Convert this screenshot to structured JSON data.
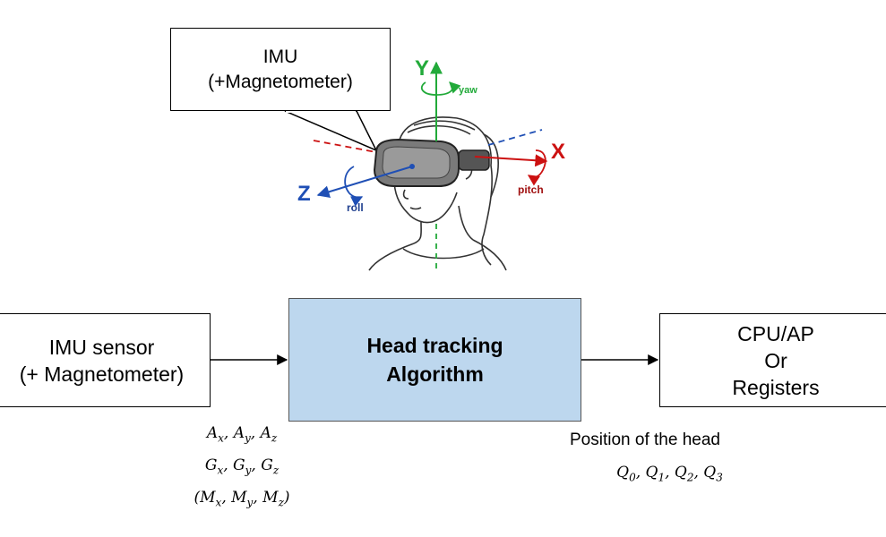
{
  "callout": {
    "line1": "IMU",
    "line2": "(+Magnetometer)"
  },
  "axes": {
    "y": {
      "label": "Y",
      "rotation": "yaw",
      "color": "#22aa3a"
    },
    "x": {
      "label": "X",
      "rotation": "pitch",
      "color": "#cc1111"
    },
    "z": {
      "label": "Z",
      "rotation": "roll",
      "color": "#1f4fb5"
    }
  },
  "blocks": {
    "sensor": {
      "line1": "IMU sensor",
      "line2": "(+ Magnetometer)"
    },
    "algorithm": {
      "line1": "Head tracking",
      "line2": "Algorithm"
    },
    "output": {
      "line1": "CPU/AP",
      "line2": "Or",
      "line3": "Registers"
    }
  },
  "inputs": {
    "accel": [
      {
        "sym": "A",
        "sub": "x"
      },
      {
        "sym": "A",
        "sub": "y"
      },
      {
        "sym": "A",
        "sub": "z"
      }
    ],
    "gyro": [
      {
        "sym": "G",
        "sub": "x"
      },
      {
        "sym": "G",
        "sub": "y"
      },
      {
        "sym": "G",
        "sub": "z"
      }
    ],
    "mag": [
      {
        "sym": "M",
        "sub": "x"
      },
      {
        "sym": "M",
        "sub": "y"
      },
      {
        "sym": "M",
        "sub": "z"
      }
    ]
  },
  "outputs": {
    "caption": "Position of the head",
    "quaternion": [
      {
        "sym": "Q",
        "sub": "0"
      },
      {
        "sym": "Q",
        "sub": "1"
      },
      {
        "sym": "Q",
        "sub": "2"
      },
      {
        "sym": "Q",
        "sub": "3"
      }
    ]
  },
  "colors": {
    "block_fill": "#bdd7ee",
    "headset": "#7a7a7a"
  }
}
